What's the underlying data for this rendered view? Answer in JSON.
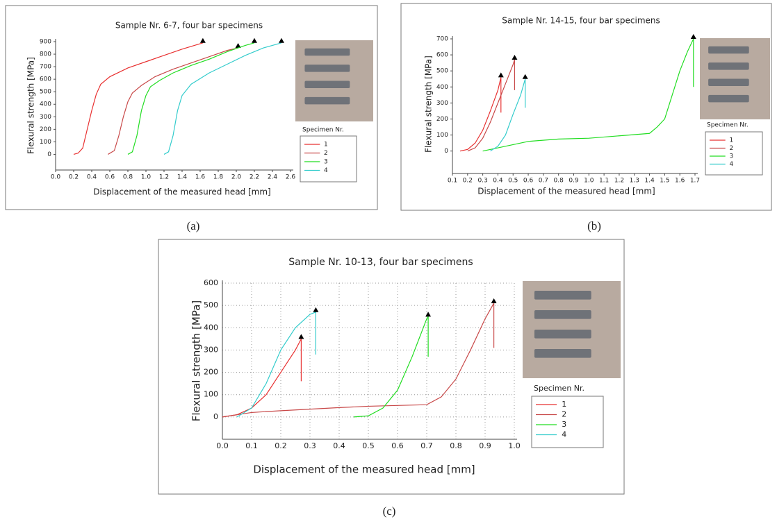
{
  "chart_data": [
    {
      "type": "line",
      "panel_label": "(a)",
      "title": "Sample Nr. 6-7, four bar specimens",
      "x_label": "Displacement of the measured head [mm]",
      "y_label": "Flexural strength [MPa]",
      "legend_title": "Specimen Nr.",
      "grid": false,
      "xlim": [
        0,
        2.6
      ],
      "ylim": [
        -125,
        900
      ],
      "xticks": [
        {
          "value": 0,
          "label": "0.0"
        },
        {
          "value": 0.2,
          "label": "0.2"
        },
        {
          "value": 0.4,
          "label": "0.4"
        },
        {
          "value": 0.6,
          "label": "0.6"
        },
        {
          "value": 0.8,
          "label": "0.8"
        },
        {
          "value": 1,
          "label": "1.0"
        },
        {
          "value": 1.2,
          "label": "1.2"
        },
        {
          "value": 1.4,
          "label": "1.4"
        },
        {
          "value": 1.6,
          "label": "1.6"
        },
        {
          "value": 1.8,
          "label": "1.8"
        },
        {
          "value": 2,
          "label": "2.0"
        },
        {
          "value": 2.2,
          "label": "2.2"
        },
        {
          "value": 2.4,
          "label": "2.4"
        },
        {
          "value": 2.6,
          "label": "2.6"
        }
      ],
      "yticks": [
        0,
        100,
        200,
        300,
        400,
        500,
        600,
        700,
        800,
        900
      ],
      "series": [
        {
          "name": "1",
          "color": "#e83030",
          "x": [
            0.2,
            0.25,
            0.3,
            0.35,
            0.4,
            0.45,
            0.5,
            0.6,
            0.8,
            1.0,
            1.2,
            1.4,
            1.63
          ],
          "values": [
            0,
            10,
            50,
            200,
            350,
            480,
            560,
            620,
            690,
            740,
            790,
            840,
            890
          ]
        },
        {
          "name": "2",
          "color": "#c84848",
          "x": [
            0.58,
            0.65,
            0.7,
            0.75,
            0.8,
            0.85,
            0.95,
            1.1,
            1.3,
            1.5,
            1.7,
            1.9,
            2.02
          ],
          "values": [
            0,
            30,
            150,
            300,
            420,
            490,
            550,
            620,
            680,
            730,
            780,
            830,
            850
          ]
        },
        {
          "name": "3",
          "color": "#22dd22",
          "x": [
            0.8,
            0.85,
            0.9,
            0.95,
            1.0,
            1.05,
            1.15,
            1.3,
            1.5,
            1.7,
            1.9,
            2.1,
            2.2
          ],
          "values": [
            0,
            20,
            150,
            350,
            470,
            540,
            590,
            650,
            710,
            760,
            820,
            870,
            890
          ]
        },
        {
          "name": "4",
          "color": "#33cccc",
          "x": [
            1.2,
            1.25,
            1.3,
            1.35,
            1.4,
            1.5,
            1.7,
            1.9,
            2.1,
            2.3,
            2.5
          ],
          "values": [
            0,
            20,
            150,
            350,
            470,
            560,
            650,
            720,
            790,
            850,
            890
          ]
        }
      ]
    },
    {
      "type": "line",
      "panel_label": "(b)",
      "title": "Sample Nr. 14-15, four bar specimens",
      "x_label": "Displacement of the measured head [mm]",
      "y_label": "Flexural strength [MPa]",
      "legend_title": "Specimen Nr.",
      "grid": false,
      "xlim": [
        0.1,
        1.7
      ],
      "ylim": [
        -140,
        700
      ],
      "xticks": [
        0.1,
        0.2,
        0.3,
        0.4,
        0.5,
        0.6,
        0.7,
        0.8,
        0.9,
        {
          "value": 1,
          "label": "1.0"
        },
        1.1,
        1.2,
        1.3,
        1.4,
        1.5,
        1.6,
        1.7
      ],
      "yticks": [
        0,
        100,
        200,
        300,
        400,
        500,
        600,
        700
      ],
      "series": [
        {
          "name": "1",
          "color": "#e83030",
          "x": [
            0.15,
            0.2,
            0.25,
            0.3,
            0.35,
            0.4,
            0.42,
            0.42
          ],
          "values": [
            0,
            10,
            50,
            130,
            250,
            380,
            460,
            240
          ]
        },
        {
          "name": "2",
          "color": "#c84848",
          "x": [
            0.2,
            0.25,
            0.3,
            0.35,
            0.4,
            0.45,
            0.5,
            0.51,
            0.51
          ],
          "values": [
            0,
            20,
            80,
            180,
            300,
            420,
            540,
            570,
            380
          ]
        },
        {
          "name": "3",
          "color": "#22dd22",
          "x": [
            0.3,
            0.4,
            0.5,
            0.6,
            0.8,
            1.0,
            1.2,
            1.4,
            1.45,
            1.5,
            1.55,
            1.6,
            1.65,
            1.69,
            1.69
          ],
          "values": [
            0,
            20,
            40,
            60,
            75,
            80,
            95,
            110,
            150,
            200,
            350,
            500,
            620,
            700,
            400
          ]
        },
        {
          "name": "4",
          "color": "#33cccc",
          "x": [
            0.35,
            0.4,
            0.45,
            0.5,
            0.55,
            0.58,
            0.58
          ],
          "values": [
            0,
            30,
            100,
            230,
            350,
            450,
            270
          ]
        }
      ]
    },
    {
      "type": "line",
      "panel_label": "(c)",
      "title": "Sample Nr. 10-13, four bar specimens",
      "x_label": "Displacement of the measured head [mm]",
      "y_label": "Flexural strength [MPa]",
      "legend_title": "Specimen Nr.",
      "grid": true,
      "xlim": [
        0,
        1
      ],
      "ylim": [
        -100,
        600
      ],
      "xticks": [
        {
          "value": 0,
          "label": "0.0"
        },
        0.1,
        0.2,
        0.3,
        0.4,
        0.5,
        0.6,
        0.7,
        0.8,
        0.9,
        {
          "value": 1,
          "label": "1.0"
        }
      ],
      "yticks": [
        0,
        100,
        200,
        300,
        400,
        500,
        600
      ],
      "series": [
        {
          "name": "1",
          "color": "#e83030",
          "x": [
            0,
            0.05,
            0.1,
            0.15,
            0.2,
            0.25,
            0.27,
            0.27
          ],
          "values": [
            0,
            10,
            40,
            100,
            200,
            300,
            350,
            160
          ]
        },
        {
          "name": "2",
          "color": "#c84848",
          "x": [
            0,
            0.1,
            0.2,
            0.3,
            0.4,
            0.5,
            0.7,
            0.75,
            0.8,
            0.85,
            0.9,
            0.93,
            0.93
          ],
          "values": [
            0,
            20,
            28,
            35,
            42,
            48,
            55,
            90,
            170,
            300,
            440,
            510,
            310
          ]
        },
        {
          "name": "3",
          "color": "#22dd22",
          "x": [
            0.45,
            0.5,
            0.55,
            0.6,
            0.65,
            0.7,
            0.705,
            0.705
          ],
          "values": [
            0,
            5,
            40,
            120,
            270,
            440,
            450,
            270
          ]
        },
        {
          "name": "4",
          "color": "#33cccc",
          "x": [
            0.05,
            0.1,
            0.15,
            0.2,
            0.25,
            0.3,
            0.32,
            0.32
          ],
          "values": [
            0,
            40,
            150,
            300,
            400,
            460,
            470,
            280
          ]
        }
      ]
    }
  ]
}
